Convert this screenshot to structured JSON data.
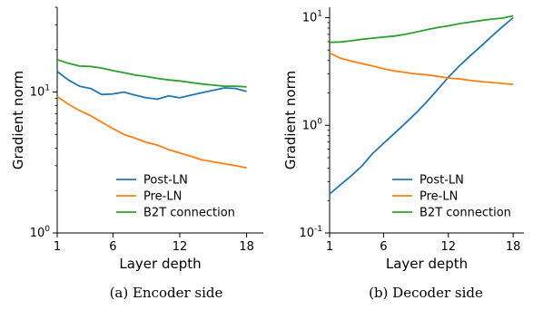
{
  "chart_data": [
    {
      "type": "line",
      "caption": "(a) Encoder side",
      "xlabel": "Layer depth",
      "ylabel": "Gradient norm",
      "yscale": "log",
      "ylim": [
        1,
        40
      ],
      "xlim": [
        1,
        19.5
      ],
      "xticks": [
        1,
        6,
        12,
        18
      ],
      "yticks": [
        {
          "value": 1,
          "base": "10",
          "exp": "0"
        },
        {
          "value": 10,
          "base": "10",
          "exp": "1"
        }
      ],
      "legend_position": "lower-right",
      "x": [
        1,
        2,
        3,
        4,
        5,
        6,
        7,
        8,
        9,
        10,
        11,
        12,
        13,
        14,
        15,
        16,
        17,
        18
      ],
      "series": [
        {
          "name": "Post-LN",
          "color": "#1f77b4",
          "values": [
            14.0,
            12.2,
            11.0,
            10.6,
            9.6,
            9.7,
            10.0,
            9.5,
            9.1,
            8.9,
            9.4,
            9.1,
            9.5,
            9.9,
            10.3,
            10.7,
            10.6,
            10.1
          ]
        },
        {
          "name": "Pre-LN",
          "color": "#ff7f0e",
          "values": [
            9.3,
            8.2,
            7.4,
            6.8,
            6.1,
            5.5,
            5.0,
            4.7,
            4.4,
            4.2,
            3.9,
            3.7,
            3.5,
            3.3,
            3.2,
            3.1,
            3.0,
            2.9
          ]
        },
        {
          "name": "B2T connection",
          "color": "#2ca02c",
          "values": [
            17.0,
            16.0,
            15.3,
            15.2,
            14.8,
            14.2,
            13.7,
            13.2,
            12.9,
            12.5,
            12.2,
            12.0,
            11.7,
            11.4,
            11.2,
            11.0,
            11.0,
            10.9
          ]
        }
      ]
    },
    {
      "type": "line",
      "caption": "(b) Decoder side",
      "xlabel": "Layer depth",
      "ylabel": "Gradient norm",
      "yscale": "log",
      "ylim": [
        0.1,
        12.5
      ],
      "xlim": [
        1,
        19.0
      ],
      "xticks": [
        1,
        6,
        12,
        18
      ],
      "yticks": [
        {
          "value": 0.1,
          "base": "10",
          "exp": "-1"
        },
        {
          "value": 1,
          "base": "10",
          "exp": "0"
        },
        {
          "value": 10,
          "base": "10",
          "exp": "1"
        }
      ],
      "legend_position": "lower-right",
      "x": [
        1,
        2,
        3,
        4,
        5,
        6,
        7,
        8,
        9,
        10,
        11,
        12,
        13,
        14,
        15,
        16,
        17,
        18
      ],
      "series": [
        {
          "name": "Post-LN",
          "color": "#1f77b4",
          "values": [
            0.23,
            0.28,
            0.34,
            0.42,
            0.55,
            0.68,
            0.84,
            1.04,
            1.3,
            1.65,
            2.15,
            2.8,
            3.55,
            4.4,
            5.4,
            6.7,
            8.2,
            10.0
          ]
        },
        {
          "name": "Pre-LN",
          "color": "#ff7f0e",
          "values": [
            4.7,
            4.2,
            3.95,
            3.75,
            3.55,
            3.35,
            3.2,
            3.1,
            3.0,
            2.95,
            2.85,
            2.75,
            2.7,
            2.62,
            2.55,
            2.5,
            2.45,
            2.4
          ]
        },
        {
          "name": "B2T connection",
          "color": "#2ca02c",
          "values": [
            5.9,
            5.95,
            6.1,
            6.3,
            6.45,
            6.6,
            6.75,
            7.0,
            7.35,
            7.75,
            8.1,
            8.4,
            8.8,
            9.1,
            9.4,
            9.7,
            9.9,
            10.4
          ]
        }
      ]
    }
  ]
}
